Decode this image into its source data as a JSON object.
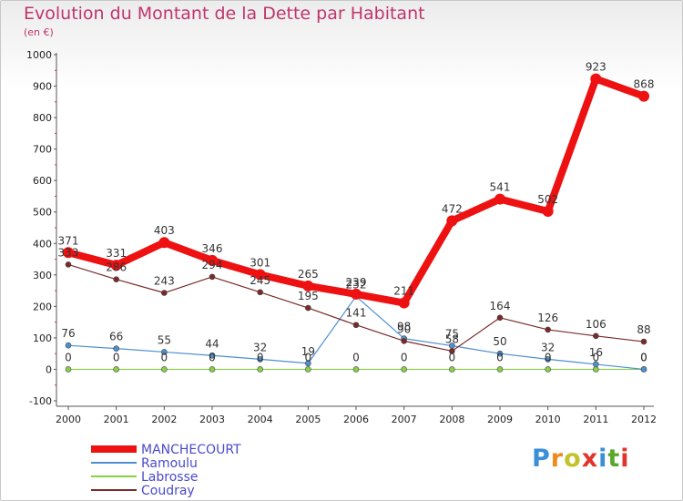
{
  "header": {
    "title": "Evolution du Montant de la Dette par Habitant",
    "subtitle": "(en €)"
  },
  "logo": {
    "text": "Proxiti",
    "letter_colors": [
      "#3a8fd8",
      "#f08a1c",
      "#c2c32a",
      "#e0342c",
      "#3a8fd8",
      "#5aa82a",
      "#e0342c"
    ]
  },
  "chart_data": {
    "type": "line",
    "title": "Evolution du Montant de la Dette par Habitant",
    "subtitle": "(en €)",
    "x": [
      "2000",
      "2001",
      "2002",
      "2003",
      "2004",
      "2005",
      "2006",
      "2007",
      "2008",
      "2009",
      "2010",
      "2011",
      "2012"
    ],
    "ylim": [
      -100,
      1000
    ],
    "yticks": [
      "-100",
      "0",
      "100",
      "200",
      "300",
      "400",
      "500",
      "600",
      "700",
      "800",
      "900",
      "1000"
    ],
    "grid": false,
    "legend_position": "bottom-left",
    "series": [
      {
        "name": "MANCHECOURT",
        "color": "#ee1111",
        "values": [
          371,
          331,
          403,
          346,
          301,
          265,
          239,
          211,
          472,
          541,
          502,
          923,
          868
        ],
        "labels": [
          "371",
          "331",
          "403",
          "346",
          "301",
          "265",
          "239",
          "211",
          "472",
          "541",
          "502",
          "923",
          "868"
        ]
      },
      {
        "name": "Ramoulu",
        "color": "#4d8fcf",
        "values": [
          76,
          66,
          55,
          44,
          32,
          19,
          232,
          98,
          75,
          50,
          32,
          16,
          0
        ],
        "labels": [
          "76",
          "66",
          "55",
          "44",
          "32",
          "19",
          "232",
          "98",
          "75",
          "50",
          "32",
          "16",
          "0"
        ]
      },
      {
        "name": "Labrosse",
        "color": "#88d048",
        "values": [
          0,
          0,
          0,
          0,
          0,
          0,
          0,
          0,
          0,
          0,
          0,
          0,
          0
        ],
        "labels": [
          "0",
          "0",
          "0",
          "0",
          "0",
          "0",
          "0",
          "0",
          "0",
          "0",
          "0",
          "0",
          "0"
        ]
      },
      {
        "name": "Coudray",
        "color": "#7a2a2a",
        "values": [
          333,
          286,
          243,
          294,
          245,
          195,
          141,
          90,
          58,
          164,
          126,
          106,
          88
        ],
        "labels": [
          "333",
          "286",
          "243",
          "294",
          "245",
          "195",
          "141",
          "90",
          "58",
          "164",
          "126",
          "106",
          "88"
        ]
      }
    ]
  }
}
